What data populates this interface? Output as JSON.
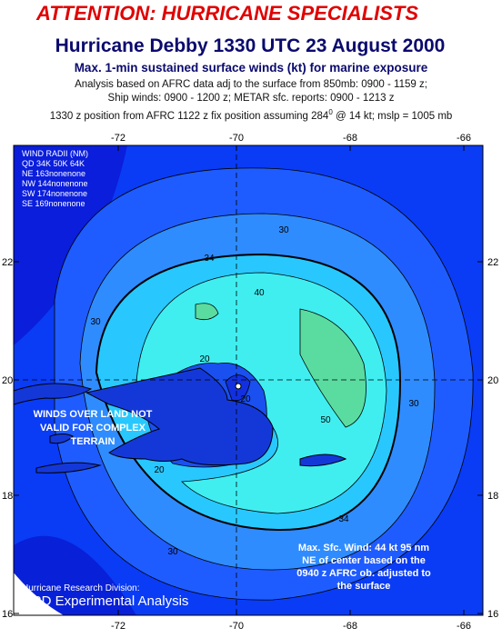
{
  "header": {
    "alert": "ATTENTION: HURRICANE SPECIALISTS",
    "title": "Hurricane Debby 1330 UTC 23 August 2000",
    "subtitle": "Max. 1-min sustained surface winds (kt) for marine exposure",
    "notes": [
      "Analysis based on AFRC data adj to the surface from 850mb: 0900 - 1159 z;",
      "Ship winds: 0900 - 1200 z; METAR sfc. reports: 0900 - 1213 z"
    ],
    "position": {
      "before": "1330 z position from AFRC 1122 z fix position assuming 284",
      "degree": "0",
      "after": " @ 14 kt; mslp = 1005 mb"
    }
  },
  "map": {
    "lon_labels": [
      "-72",
      "-70",
      "-68",
      "-66"
    ],
    "lat_labels": [
      "22",
      "20",
      "18",
      "16"
    ],
    "wind_radii": [
      "WIND RADII (NM)",
      "QD  34K  50K  64K",
      "NE  163nonenone",
      "NW  144nonenone",
      "SW  174nonenone",
      "SE  169nonenone"
    ],
    "land_note": [
      "WINDS OVER LAND NOT",
      "VALID FOR COMPLEX",
      "TERRAIN"
    ],
    "max_wind": [
      "Max. Sfc. Wind: 44 kt 95 nm",
      "NE of center based on the",
      "0940 z AFRC ob. adjusted to",
      "the surface"
    ],
    "credit": [
      "Hurricane Research Division:",
      "HRD Experimental Analysis"
    ],
    "contour_labels": [
      "30",
      "34",
      "40",
      "30",
      "50",
      "30",
      "20",
      "20",
      "34",
      "30",
      "20"
    ]
  }
}
